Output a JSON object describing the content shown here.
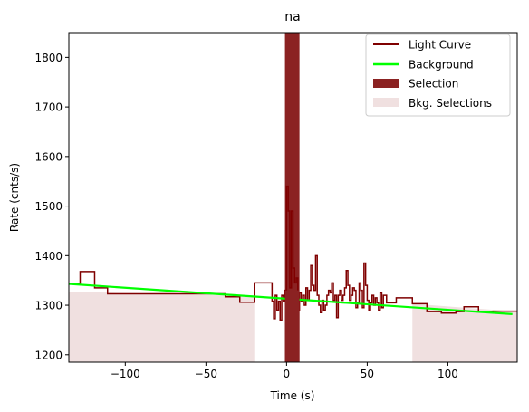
{
  "chart_data": {
    "type": "line",
    "title": "na",
    "xlabel": "Time (s)",
    "ylabel": "Rate (cnts/s)",
    "xlim": [
      -135,
      143
    ],
    "ylim": [
      1185,
      1850
    ],
    "x_ticks": [
      -100,
      -50,
      0,
      50,
      100
    ],
    "y_ticks": [
      1200,
      1300,
      1400,
      1500,
      1600,
      1700,
      1800
    ],
    "grid": false,
    "legend_position": "top-right",
    "legend": [
      {
        "label": "Light Curve",
        "kind": "line",
        "color": "#7f0000"
      },
      {
        "label": "Background",
        "kind": "line",
        "color": "#00ff00"
      },
      {
        "label": "Selection",
        "kind": "patch",
        "color": "#8b2222"
      },
      {
        "label": "Bkg. Selections",
        "kind": "patch",
        "color": "#f0e0e0"
      }
    ],
    "series": [
      {
        "name": "Light Curve",
        "style": "step",
        "color": "#7f0000",
        "points": [
          [
            -135,
            1343
          ],
          [
            -128,
            1368
          ],
          [
            -119,
            1335
          ],
          [
            -111,
            1323
          ],
          [
            -102,
            1323
          ],
          [
            -38,
            1317
          ],
          [
            -29,
            1306
          ],
          [
            -20,
            1345
          ],
          [
            -12,
            1345
          ],
          [
            -9,
            1308
          ],
          [
            -8,
            1273
          ],
          [
            -7,
            1320
          ],
          [
            -6,
            1290
          ],
          [
            -5,
            1308
          ],
          [
            -4,
            1270
          ],
          [
            -3,
            1320
          ],
          [
            -2,
            1308
          ],
          [
            -1,
            1330
          ],
          [
            0,
            1540
          ],
          [
            1,
            1490
          ],
          [
            2,
            1335
          ],
          [
            3,
            1490
          ],
          [
            4,
            1375
          ],
          [
            5,
            1345
          ],
          [
            6,
            1355
          ],
          [
            7,
            1290
          ],
          [
            8,
            1325
          ],
          [
            9,
            1308
          ],
          [
            10,
            1320
          ],
          [
            11,
            1300
          ],
          [
            12,
            1335
          ],
          [
            13,
            1310
          ],
          [
            14,
            1330
          ],
          [
            15,
            1380
          ],
          [
            16,
            1340
          ],
          [
            17,
            1330
          ],
          [
            18,
            1400
          ],
          [
            19,
            1320
          ],
          [
            20,
            1300
          ],
          [
            21,
            1285
          ],
          [
            22,
            1310
          ],
          [
            23,
            1290
          ],
          [
            24,
            1300
          ],
          [
            25,
            1320
          ],
          [
            26,
            1330
          ],
          [
            27,
            1325
          ],
          [
            28,
            1345
          ],
          [
            29,
            1310
          ],
          [
            30,
            1320
          ],
          [
            31,
            1275
          ],
          [
            32,
            1320
          ],
          [
            33,
            1330
          ],
          [
            34,
            1310
          ],
          [
            35,
            1320
          ],
          [
            36,
            1335
          ],
          [
            37,
            1370
          ],
          [
            38,
            1340
          ],
          [
            39,
            1310
          ],
          [
            40,
            1320
          ],
          [
            41,
            1335
          ],
          [
            42,
            1330
          ],
          [
            43,
            1295
          ],
          [
            44,
            1305
          ],
          [
            45,
            1345
          ],
          [
            46,
            1330
          ],
          [
            47,
            1295
          ],
          [
            48,
            1385
          ],
          [
            49,
            1340
          ],
          [
            50,
            1310
          ],
          [
            51,
            1290
          ],
          [
            52,
            1305
          ],
          [
            53,
            1320
          ],
          [
            54,
            1300
          ],
          [
            55,
            1315
          ],
          [
            56,
            1305
          ],
          [
            57,
            1290
          ],
          [
            58,
            1325
          ],
          [
            59,
            1295
          ],
          [
            60,
            1320
          ],
          [
            62,
            1305
          ],
          [
            68,
            1315
          ],
          [
            78,
            1303
          ],
          [
            87,
            1287
          ],
          [
            96,
            1284
          ],
          [
            105,
            1287
          ],
          [
            110,
            1297
          ],
          [
            119,
            1287
          ],
          [
            128,
            1288
          ],
          [
            143,
            1288
          ]
        ]
      },
      {
        "name": "Background",
        "style": "line",
        "color": "#00ff00",
        "points": [
          [
            -135,
            1343
          ],
          [
            140,
            1282
          ]
        ]
      }
    ],
    "selection": {
      "label": "Selection",
      "x_range": [
        -1,
        8
      ],
      "color": "#8b2222"
    },
    "bkg_selections": [
      {
        "x_range": [
          -135,
          -20
        ],
        "y_top_start": 1327,
        "y_top_end": 1319
      },
      {
        "x_range": [
          78,
          143
        ],
        "y_top_start": 1303,
        "y_top_end": 1287
      }
    ]
  }
}
